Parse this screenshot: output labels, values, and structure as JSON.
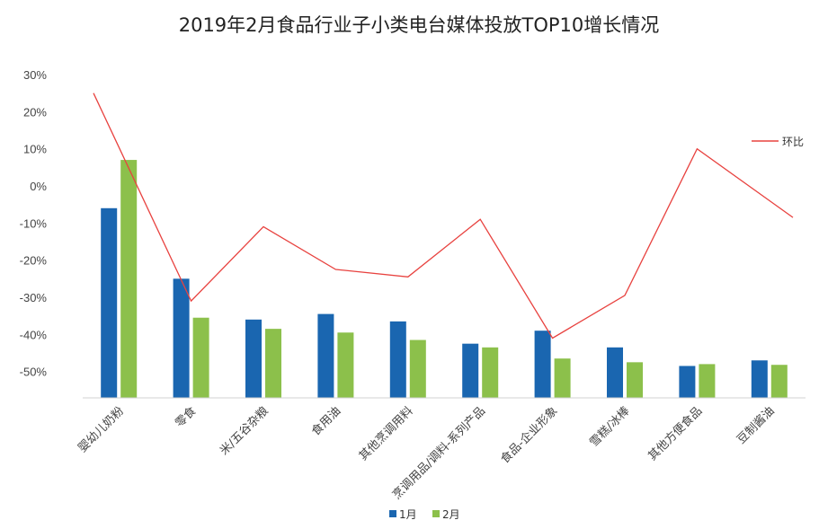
{
  "chart_data": {
    "type": "bar",
    "title": "2019年2月食品行业子小类电台媒体投放TOP10增长情况",
    "categories": [
      "婴幼儿奶粉",
      "零食",
      "米/五谷杂粮",
      "食用油",
      "其他烹调用料",
      "烹调用品/调料-系列产品",
      "食品-企业形象",
      "雪糕/冰棒",
      "其他方便食品",
      "豆制酱油"
    ],
    "yticks": [
      "30%",
      "20%",
      "10%",
      "0%",
      "-10%",
      "-20%",
      "-30%",
      "-40%",
      "-50%"
    ],
    "ylim": [
      -57,
      30
    ],
    "series": [
      {
        "name": "1月",
        "color": "#1a66b0",
        "kind": "bar",
        "values": [
          -6,
          -25,
          -36,
          -34.5,
          -36.5,
          -42.5,
          -39,
          -43.5,
          -48.5,
          -47
        ]
      },
      {
        "name": "2月",
        "color": "#8cc04b",
        "kind": "bar",
        "values": [
          7,
          -35.5,
          -38.5,
          -39.5,
          -41.5,
          -43.5,
          -46.5,
          -47.5,
          -48,
          -48.2
        ]
      },
      {
        "name": "环比",
        "color": "#e8423f",
        "kind": "line",
        "values": [
          25,
          -31,
          -11,
          -22.5,
          -24.5,
          -9,
          -41,
          -29.5,
          10,
          -8.5
        ]
      }
    ],
    "legend": [
      "1月",
      "2月"
    ],
    "line_legend": "环比"
  }
}
